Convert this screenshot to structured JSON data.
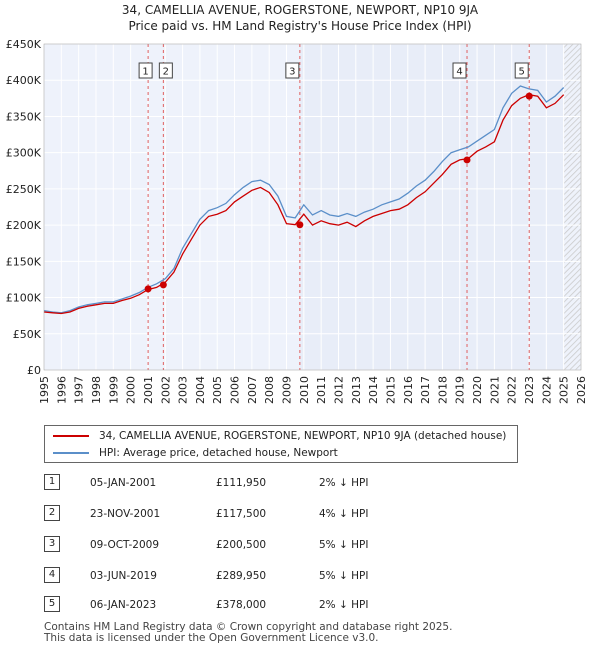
{
  "title_line1": "34, CAMELLIA AVENUE, ROGERSTONE, NEWPORT, NP10 9JA",
  "title_line2": "Price paid vs. HM Land Registry's House Price Index (HPI)",
  "colors": {
    "property_line": "#cc0000",
    "hpi_line": "#5b8fc9",
    "shade": "#e8edf8",
    "hatch": "#c8c8c8",
    "vline": "#e06060",
    "grid": "#ffffff",
    "plot_bg": "#eef2fb"
  },
  "legend": {
    "property_label": "34, CAMELLIA AVENUE, ROGERSTONE, NEWPORT, NP10 9JA (detached house)",
    "hpi_label": "HPI: Average price, detached house, Newport"
  },
  "transactions": [
    {
      "num": "1",
      "date": "05-JAN-2001",
      "price": "£111,950",
      "hpi": "2% ↓ HPI"
    },
    {
      "num": "2",
      "date": "23-NOV-2001",
      "price": "£117,500",
      "hpi": "4% ↓ HPI"
    },
    {
      "num": "3",
      "date": "09-OCT-2009",
      "price": "£200,500",
      "hpi": "5% ↓ HPI"
    },
    {
      "num": "4",
      "date": "03-JUN-2019",
      "price": "£289,950",
      "hpi": "5% ↓ HPI"
    },
    {
      "num": "5",
      "date": "06-JAN-2023",
      "price": "£378,000",
      "hpi": "2% ↓ HPI"
    }
  ],
  "footer_line1": "Contains HM Land Registry data © Crown copyright and database right 2025.",
  "footer_line2": "This data is licensed under the Open Government Licence v3.0.",
  "chart_data": {
    "type": "line",
    "title": "34, CAMELLIA AVENUE, ROGERSTONE, NEWPORT, NP10 9JA — Price paid vs. HM Land Registry's House Price Index (HPI)",
    "xlabel": "",
    "ylabel": "",
    "xlim": [
      1995,
      2026
    ],
    "ylim": [
      0,
      450000
    ],
    "x_ticks": [
      "1995",
      "1996",
      "1997",
      "1998",
      "1999",
      "2000",
      "2001",
      "2002",
      "2003",
      "2004",
      "2005",
      "2006",
      "2007",
      "2008",
      "2009",
      "2010",
      "2011",
      "2012",
      "2013",
      "2014",
      "2015",
      "2016",
      "2017",
      "2018",
      "2019",
      "2020",
      "2021",
      "2022",
      "2023",
      "2024",
      "2025",
      "2026"
    ],
    "y_ticks": [
      {
        "value": 0,
        "label": "£0"
      },
      {
        "value": 50000,
        "label": "£50K"
      },
      {
        "value": 100000,
        "label": "£100K"
      },
      {
        "value": 150000,
        "label": "£150K"
      },
      {
        "value": 200000,
        "label": "£200K"
      },
      {
        "value": 250000,
        "label": "£250K"
      },
      {
        "value": 300000,
        "label": "£300K"
      },
      {
        "value": 350000,
        "label": "£350K"
      },
      {
        "value": 400000,
        "label": "£400K"
      },
      {
        "value": 450000,
        "label": "£450K"
      }
    ],
    "shaded_range": [
      2009.77,
      2025.0
    ],
    "forecast_from": 2025.0,
    "series": [
      {
        "name": "34, CAMELLIA AVENUE, ROGERSTONE, NEWPORT, NP10 9JA (detached house)",
        "x": [
          1995.0,
          1995.5,
          1996.0,
          1996.5,
          1997.0,
          1997.5,
          1998.0,
          1998.5,
          1999.0,
          1999.5,
          2000.0,
          2000.5,
          2001.0,
          2001.5,
          2002.0,
          2002.5,
          2003.0,
          2003.5,
          2004.0,
          2004.5,
          2005.0,
          2005.5,
          2006.0,
          2006.5,
          2007.0,
          2007.5,
          2008.0,
          2008.5,
          2009.0,
          2009.5,
          2010.0,
          2010.5,
          2011.0,
          2011.5,
          2012.0,
          2012.5,
          2013.0,
          2013.5,
          2014.0,
          2014.5,
          2015.0,
          2015.5,
          2016.0,
          2016.5,
          2017.0,
          2017.5,
          2018.0,
          2018.5,
          2019.0,
          2019.5,
          2020.0,
          2020.5,
          2021.0,
          2021.5,
          2022.0,
          2022.5,
          2023.0,
          2023.5,
          2024.0,
          2024.5,
          2025.0
        ],
        "values": [
          80000,
          79000,
          78000,
          80000,
          85000,
          88000,
          90000,
          92000,
          92000,
          96000,
          99000,
          104000,
          111000,
          114000,
          121000,
          135000,
          160000,
          180000,
          200000,
          212000,
          215000,
          220000,
          232000,
          240000,
          248000,
          252000,
          245000,
          228000,
          202000,
          200500,
          215000,
          200000,
          206000,
          202000,
          200000,
          204000,
          198000,
          206000,
          212000,
          216000,
          220000,
          222000,
          228000,
          238000,
          246000,
          258000,
          270000,
          284000,
          290000,
          292000,
          302000,
          308000,
          315000,
          345000,
          365000,
          375000,
          380000,
          378000,
          362000,
          368000,
          380000
        ]
      },
      {
        "name": "HPI: Average price, detached house, Newport",
        "x": [
          1995.0,
          1995.5,
          1996.0,
          1996.5,
          1997.0,
          1997.5,
          1998.0,
          1998.5,
          1999.0,
          1999.5,
          2000.0,
          2000.5,
          2001.0,
          2001.5,
          2002.0,
          2002.5,
          2003.0,
          2003.5,
          2004.0,
          2004.5,
          2005.0,
          2005.5,
          2006.0,
          2006.5,
          2007.0,
          2007.5,
          2008.0,
          2008.5,
          2009.0,
          2009.5,
          2010.0,
          2010.5,
          2011.0,
          2011.5,
          2012.0,
          2012.5,
          2013.0,
          2013.5,
          2014.0,
          2014.5,
          2015.0,
          2015.5,
          2016.0,
          2016.5,
          2017.0,
          2017.5,
          2018.0,
          2018.5,
          2019.0,
          2019.5,
          2020.0,
          2020.5,
          2021.0,
          2021.5,
          2022.0,
          2022.5,
          2023.0,
          2023.5,
          2024.0,
          2024.5,
          2025.0
        ],
        "values": [
          82000,
          80000,
          79000,
          82000,
          87000,
          90000,
          92000,
          94000,
          94000,
          98000,
          102000,
          107000,
          114000,
          119000,
          126000,
          140000,
          168000,
          188000,
          208000,
          220000,
          224000,
          230000,
          242000,
          252000,
          260000,
          262000,
          256000,
          240000,
          212000,
          210000,
          228000,
          214000,
          220000,
          214000,
          212000,
          216000,
          212000,
          218000,
          222000,
          228000,
          232000,
          236000,
          244000,
          254000,
          262000,
          274000,
          288000,
          300000,
          304000,
          308000,
          316000,
          324000,
          332000,
          362000,
          382000,
          392000,
          388000,
          386000,
          370000,
          378000,
          390000
        ]
      }
    ],
    "sale_markers": [
      {
        "label": "1",
        "x": 2001.01,
        "value": 111950
      },
      {
        "label": "2",
        "x": 2001.89,
        "value": 117500
      },
      {
        "label": "3",
        "x": 2009.77,
        "value": 200500
      },
      {
        "label": "4",
        "x": 2019.42,
        "value": 289950
      },
      {
        "label": "5",
        "x": 2023.01,
        "value": 378000
      }
    ]
  }
}
